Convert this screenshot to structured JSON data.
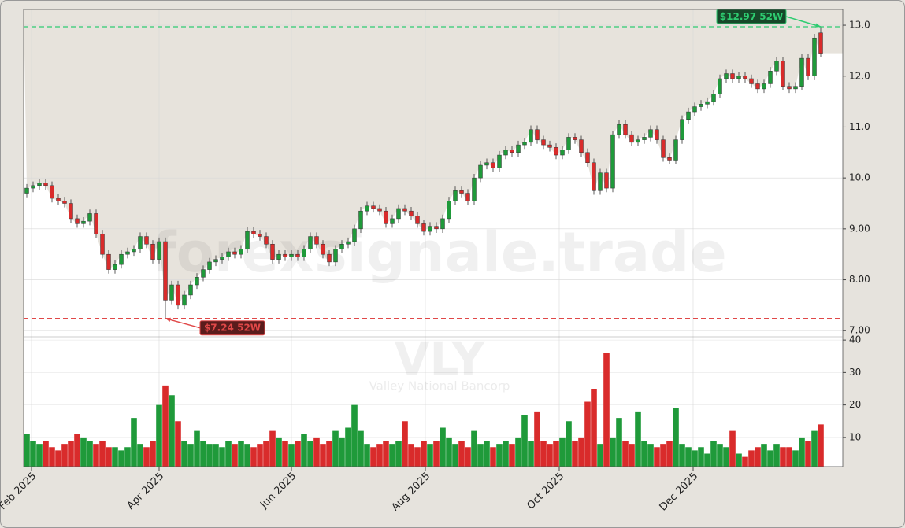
{
  "chart_data": {
    "type": "candlestick",
    "watermark": "forexsignale.trade",
    "symbol": "VLY",
    "company": "Valley National Bancorp",
    "open": [
      9.7,
      9.8,
      9.85,
      9.9,
      9.85,
      9.6,
      9.55,
      9.5,
      9.2,
      9.1,
      9.15,
      9.3,
      8.9,
      8.5,
      8.2,
      8.3,
      8.5,
      8.55,
      8.6,
      8.85,
      8.7,
      8.4,
      8.75,
      7.6,
      7.9,
      7.5,
      7.7,
      7.9,
      8.05,
      8.2,
      8.35,
      8.4,
      8.45,
      8.55,
      8.5,
      8.6,
      8.95,
      8.9,
      8.85,
      8.7,
      8.4,
      8.5,
      8.45,
      8.5,
      8.45,
      8.6,
      8.85,
      8.7,
      8.5,
      8.35,
      8.6,
      8.7,
      8.75,
      9.0,
      9.35,
      9.45,
      9.4,
      9.35,
      9.1,
      9.2,
      9.4,
      9.35,
      9.25,
      9.1,
      8.95,
      9.05,
      9.0,
      9.2,
      9.55,
      9.75,
      9.7,
      9.55,
      10.0,
      10.25,
      10.3,
      10.2,
      10.45,
      10.55,
      10.5,
      10.65,
      10.7,
      10.95,
      10.75,
      10.65,
      10.6,
      10.45,
      10.55,
      10.8,
      10.75,
      10.5,
      10.3,
      9.75,
      10.1,
      9.8,
      10.85,
      11.05,
      10.85,
      10.7,
      10.75,
      10.8,
      10.95,
      10.75,
      10.4,
      10.35,
      10.75,
      11.15,
      11.3,
      11.4,
      11.45,
      11.5,
      11.65,
      11.95,
      12.05,
      11.95,
      12.0,
      11.95,
      11.85,
      11.75,
      11.85,
      12.1,
      12.3,
      11.8,
      11.75,
      11.8,
      12.35,
      12.0,
      12.85
    ],
    "high": [
      9.88,
      9.93,
      9.98,
      9.98,
      9.93,
      9.68,
      9.63,
      9.58,
      9.28,
      9.23,
      9.38,
      9.38,
      8.98,
      8.58,
      8.38,
      8.58,
      8.63,
      8.68,
      8.93,
      8.93,
      8.78,
      8.83,
      8.83,
      7.98,
      7.98,
      7.78,
      7.98,
      8.13,
      8.28,
      8.43,
      8.48,
      8.53,
      8.63,
      8.63,
      8.68,
      9.03,
      9.03,
      8.98,
      8.93,
      8.78,
      8.58,
      8.58,
      8.58,
      8.58,
      8.68,
      8.93,
      8.93,
      8.78,
      8.58,
      8.68,
      8.78,
      8.83,
      9.08,
      9.43,
      9.53,
      9.53,
      9.48,
      9.43,
      9.28,
      9.48,
      9.48,
      9.43,
      9.33,
      9.18,
      9.13,
      9.13,
      9.28,
      9.63,
      9.83,
      9.83,
      9.78,
      10.08,
      10.33,
      10.38,
      10.38,
      10.53,
      10.63,
      10.63,
      10.73,
      10.78,
      11.03,
      11.03,
      10.83,
      10.73,
      10.68,
      10.63,
      10.88,
      10.88,
      10.83,
      10.58,
      10.38,
      10.18,
      10.18,
      10.93,
      11.13,
      11.13,
      10.93,
      10.83,
      10.88,
      11.03,
      11.03,
      10.83,
      10.48,
      10.83,
      11.23,
      11.38,
      11.48,
      11.53,
      11.58,
      11.73,
      12.03,
      12.13,
      12.13,
      12.08,
      12.08,
      12.03,
      11.93,
      11.93,
      12.18,
      12.38,
      12.38,
      11.88,
      11.88,
      12.43,
      12.43,
      12.83,
      12.97
    ],
    "low": [
      9.62,
      9.72,
      9.77,
      9.77,
      9.52,
      9.47,
      9.42,
      9.12,
      9.02,
      9.02,
      9.07,
      8.82,
      8.42,
      8.12,
      8.12,
      8.22,
      8.42,
      8.47,
      8.52,
      8.62,
      8.32,
      8.32,
      7.24,
      7.52,
      7.42,
      7.42,
      7.62,
      7.82,
      7.97,
      8.12,
      8.27,
      8.32,
      8.37,
      8.42,
      8.42,
      8.52,
      8.82,
      8.77,
      8.62,
      8.32,
      8.32,
      8.37,
      8.37,
      8.37,
      8.37,
      8.52,
      8.62,
      8.42,
      8.27,
      8.27,
      8.52,
      8.62,
      8.67,
      8.92,
      9.27,
      9.32,
      9.27,
      9.02,
      9.02,
      9.12,
      9.27,
      9.17,
      9.02,
      8.87,
      8.87,
      8.92,
      8.92,
      9.12,
      9.47,
      9.62,
      9.47,
      9.47,
      9.92,
      10.17,
      10.12,
      10.12,
      10.37,
      10.42,
      10.42,
      10.57,
      10.62,
      10.67,
      10.57,
      10.52,
      10.37,
      10.37,
      10.47,
      10.67,
      10.42,
      10.22,
      9.67,
      9.67,
      9.72,
      9.72,
      10.77,
      10.77,
      10.62,
      10.62,
      10.67,
      10.72,
      10.67,
      10.32,
      10.27,
      10.27,
      10.67,
      11.07,
      11.22,
      11.32,
      11.37,
      11.42,
      11.57,
      11.87,
      11.87,
      11.87,
      11.87,
      11.77,
      11.67,
      11.67,
      11.77,
      12.02,
      11.72,
      11.67,
      11.67,
      11.72,
      11.92,
      11.92,
      12.37
    ],
    "close": [
      9.8,
      9.85,
      9.9,
      9.85,
      9.6,
      9.55,
      9.5,
      9.2,
      9.1,
      9.15,
      9.3,
      8.9,
      8.5,
      8.2,
      8.3,
      8.5,
      8.55,
      8.6,
      8.85,
      8.7,
      8.4,
      8.75,
      7.6,
      7.9,
      7.5,
      7.7,
      7.9,
      8.05,
      8.2,
      8.35,
      8.4,
      8.45,
      8.55,
      8.5,
      8.6,
      8.95,
      8.9,
      8.85,
      8.7,
      8.4,
      8.5,
      8.45,
      8.5,
      8.45,
      8.6,
      8.85,
      8.7,
      8.5,
      8.35,
      8.6,
      8.7,
      8.75,
      9.0,
      9.35,
      9.45,
      9.4,
      9.35,
      9.1,
      9.2,
      9.4,
      9.35,
      9.25,
      9.1,
      8.95,
      9.05,
      9.0,
      9.2,
      9.55,
      9.75,
      9.7,
      9.55,
      10.0,
      10.25,
      10.3,
      10.2,
      10.45,
      10.55,
      10.5,
      10.65,
      10.7,
      10.95,
      10.75,
      10.65,
      10.6,
      10.45,
      10.55,
      10.8,
      10.75,
      10.5,
      10.3,
      9.75,
      10.1,
      9.8,
      10.85,
      11.05,
      10.85,
      10.7,
      10.75,
      10.8,
      10.95,
      10.75,
      10.4,
      10.35,
      10.75,
      11.15,
      11.3,
      11.4,
      11.45,
      11.5,
      11.65,
      11.95,
      12.05,
      11.95,
      12.0,
      11.95,
      11.85,
      11.75,
      11.85,
      12.1,
      12.3,
      11.8,
      11.75,
      11.8,
      12.35,
      12.0,
      12.75,
      12.45
    ],
    "volume": [
      11,
      9,
      8,
      9,
      7,
      6,
      8,
      9,
      11,
      10,
      9,
      8,
      9,
      7,
      7,
      6,
      7,
      16,
      8,
      7,
      9,
      20,
      26,
      23,
      15,
      9,
      8,
      12,
      9,
      8,
      8,
      7,
      9,
      8,
      9,
      8,
      7,
      8,
      9,
      12,
      10,
      9,
      8,
      9,
      11,
      9,
      10,
      8,
      9,
      12,
      10,
      13,
      20,
      12,
      8,
      7,
      8,
      9,
      8,
      9,
      15,
      8,
      7,
      9,
      8,
      9,
      13,
      10,
      8,
      9,
      7,
      12,
      8,
      9,
      7,
      8,
      9,
      8,
      10,
      17,
      9,
      18,
      9,
      8,
      9,
      10,
      15,
      9,
      10,
      21,
      25,
      8,
      36,
      10,
      16,
      9,
      8,
      18,
      9,
      8,
      7,
      8,
      9,
      19,
      8,
      7,
      6,
      7,
      5,
      9,
      8,
      7,
      12,
      5,
      4,
      6,
      7,
      8,
      6,
      8,
      7,
      7,
      6,
      10,
      9,
      12,
      14
    ],
    "up_color": "#1f9a3a",
    "down_color": "#d92b2b",
    "area_color": "#e7e3dc",
    "xlim": [
      -0.5,
      129.5
    ],
    "xticks": [
      {
        "value": 0.75,
        "label": "Feb 2025"
      },
      {
        "value": 21,
        "label": "Apr 2025"
      },
      {
        "value": 42,
        "label": "Jun 2025"
      },
      {
        "value": 63.25,
        "label": "Aug 2025"
      },
      {
        "value": 84.5,
        "label": "Oct 2025"
      },
      {
        "value": 105.75,
        "label": "Dec 2025"
      }
    ],
    "ylim": [
      6.88,
      13.31
    ],
    "yticks": [
      {
        "value": 7,
        "label": "7.00"
      },
      {
        "value": 8,
        "label": "8.00"
      },
      {
        "value": 9,
        "label": "9.00"
      },
      {
        "value": 10,
        "label": "10.0"
      },
      {
        "value": 11,
        "label": "11.0"
      },
      {
        "value": 12,
        "label": "12.0"
      },
      {
        "value": 13,
        "label": "13.0"
      }
    ],
    "volume_ylim": [
      1,
      41
    ],
    "volume_yticks": [
      10,
      20,
      30,
      40
    ],
    "grid": true,
    "annotations": [
      {
        "text": "$12.97 52W",
        "value": 12.97,
        "color": "#2ecc71",
        "box": "#17482a"
      },
      {
        "text": "$7.24 52W",
        "value": 7.24,
        "color": "#e04848",
        "box": "#5a1c1c"
      }
    ]
  }
}
